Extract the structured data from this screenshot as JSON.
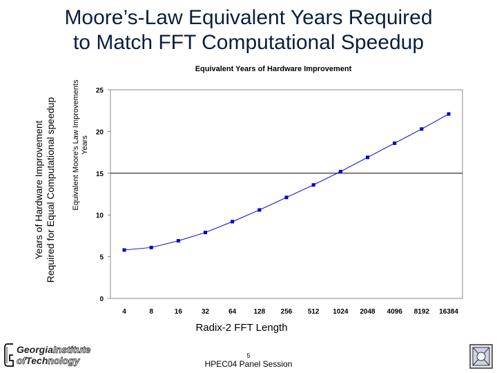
{
  "slide": {
    "title_line1": "Moore’s-Law Equivalent Years Required",
    "title_line2": "to Match FFT Computational Speedup",
    "outer_ylabel_line1": "Years of Hardware Improvement",
    "outer_ylabel_line2": "Required for Equal Computational speedup",
    "xlabel": "Radix-2 FFT Length",
    "footer_page": "5",
    "footer_text": "HPEC04 Panel Session",
    "logo_word1_solid": "Georgia",
    "logo_word1_hollow": "Institute",
    "logo_word2_hollow": "of",
    "logo_word2_solid": "Tech",
    "logo_word2_hollow_end": "nology"
  },
  "chart_data": {
    "type": "line",
    "title": "Equivalent Years of Hardware Improvement",
    "ylabel_line1": "Equivalent Moore's Law Improvements",
    "ylabel_line2": "Years",
    "xlabel": "Radix-2 FFT Length",
    "categories": [
      "4",
      "8",
      "16",
      "32",
      "64",
      "128",
      "256",
      "512",
      "1024",
      "2048",
      "4096",
      "8192",
      "16384"
    ],
    "series": [
      {
        "name": "Equivalent Years",
        "values": [
          5.8,
          6.1,
          6.9,
          7.9,
          9.2,
          10.6,
          12.1,
          13.6,
          15.2,
          16.9,
          18.6,
          20.3,
          22.1
        ]
      }
    ],
    "reference_line": 15,
    "ylim": [
      0,
      25
    ],
    "yticks": [
      "0",
      "5",
      "10",
      "15",
      "20",
      "25"
    ],
    "color": "#0000cc"
  }
}
